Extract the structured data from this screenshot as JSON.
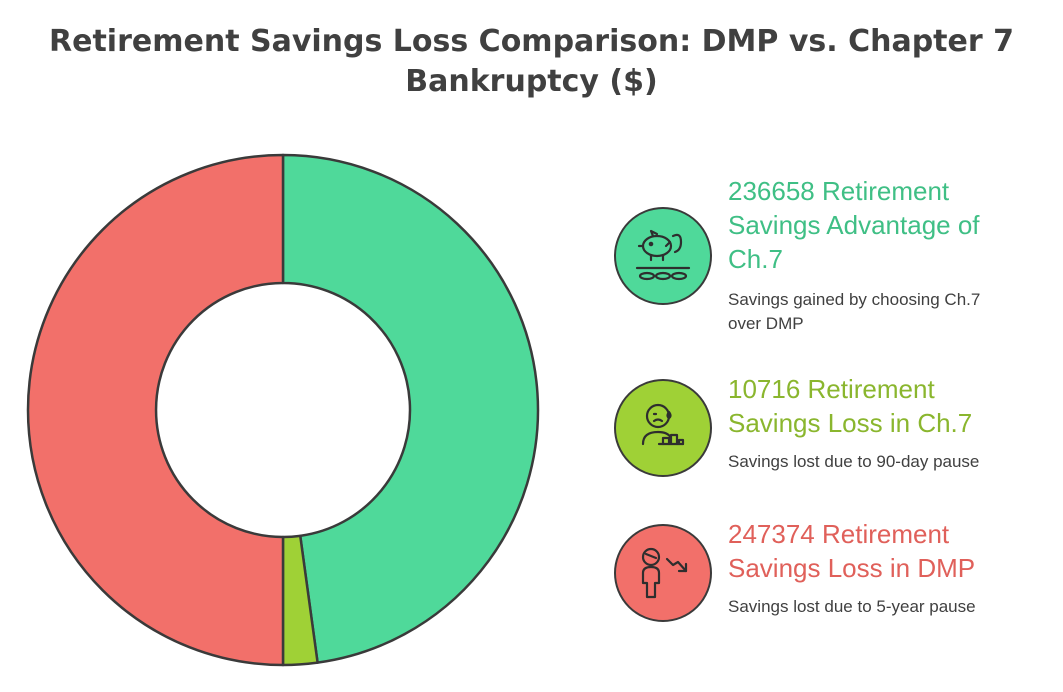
{
  "title_line1": "Retirement Savings Loss Comparison: DMP vs. Chapter 7",
  "title_line2": "Bankruptcy ($)",
  "colors": {
    "advantage": "#4fd99a",
    "advantage_text": "#3fbf85",
    "ch7_loss": "#9fd136",
    "ch7_loss_text": "#8ab62e",
    "dmp_loss": "#f2706a",
    "dmp_loss_text": "#e0605a",
    "stroke": "#3a3a3a"
  },
  "chart_data": {
    "type": "pie",
    "donut": true,
    "slices": [
      {
        "label": "236658 Retirement Savings Advantage of Ch.7",
        "value": 236658,
        "color": "#4fd99a",
        "icon": "piggy-bank-icon"
      },
      {
        "label": "10716 Retirement Savings Loss in Ch.7",
        "value": 10716,
        "color": "#9fd136",
        "icon": "worried-person-icon"
      },
      {
        "label": "247374 Retirement Savings Loss in DMP",
        "value": 247374,
        "color": "#f2706a",
        "icon": "person-decline-icon"
      }
    ]
  },
  "legend": [
    {
      "head_lines": [
        "236658 Retirement",
        "Savings Advantage of",
        "Ch.7"
      ],
      "desc_lines": [
        "Savings gained by choosing Ch.7",
        "over DMP"
      ],
      "icon": "piggy-bank-icon"
    },
    {
      "head_lines": [
        "10716 Retirement",
        "Savings Loss in Ch.7"
      ],
      "desc_lines": [
        "Savings lost due to 90-day pause"
      ],
      "icon": "worried-person-icon"
    },
    {
      "head_lines": [
        "247374 Retirement",
        "Savings Loss in DMP"
      ],
      "desc_lines": [
        "Savings lost due to 5-year pause"
      ],
      "icon": "person-decline-icon"
    }
  ]
}
